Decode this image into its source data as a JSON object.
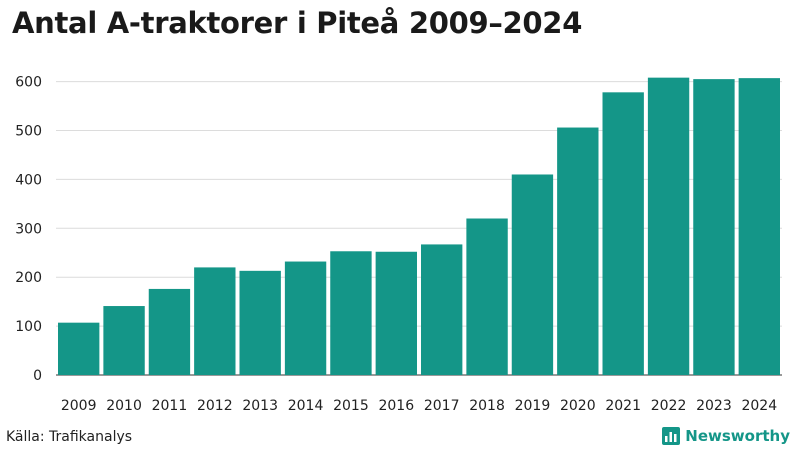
{
  "title": "Antal A-traktorer i Piteå 2009–2024",
  "source": "Källa: Trafikanalys",
  "brand": {
    "name": "Newsworthy",
    "icon": "bar-chart-logo-icon"
  },
  "colors": {
    "bar": "#149688",
    "grid": "#dcdcdc",
    "axis": "#333333"
  },
  "chart_data": {
    "type": "bar",
    "title": "Antal A-traktorer i Piteå 2009–2024",
    "xlabel": "",
    "ylabel": "",
    "ylim": [
      0,
      640
    ],
    "yticks": [
      0,
      100,
      200,
      300,
      400,
      500,
      600
    ],
    "grid": true,
    "legend": "none",
    "categories": [
      "2009",
      "2010",
      "2011",
      "2012",
      "2013",
      "2014",
      "2015",
      "2016",
      "2017",
      "2018",
      "2019",
      "2020",
      "2021",
      "2022",
      "2023",
      "2024"
    ],
    "values": [
      107,
      141,
      176,
      220,
      213,
      232,
      253,
      252,
      267,
      320,
      410,
      506,
      578,
      608,
      605,
      607
    ]
  }
}
